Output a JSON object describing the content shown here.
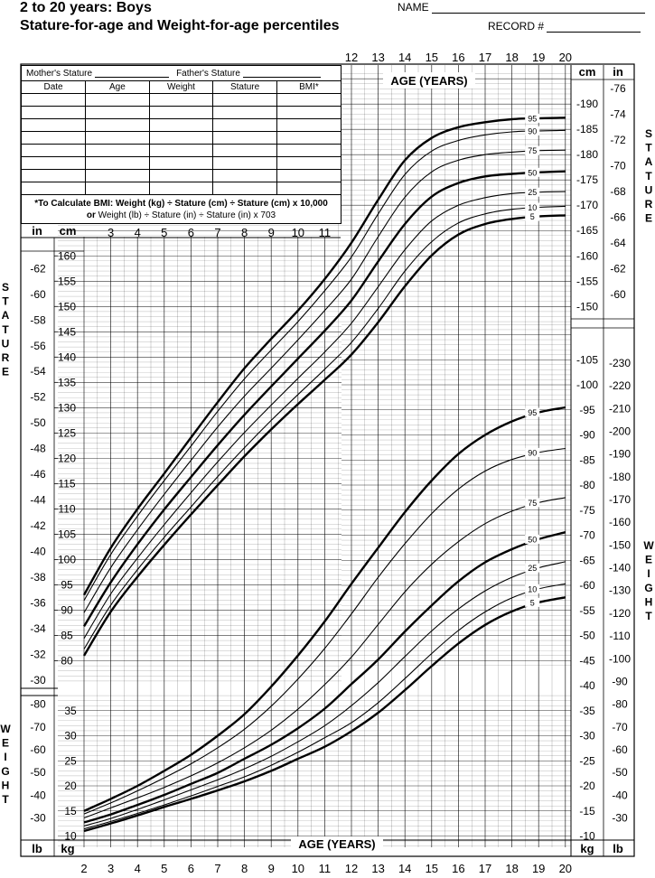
{
  "header": {
    "title": "2 to 20 years: Boys",
    "subtitle": "Stature-for-age and Weight-for-age percentiles",
    "name_label": "NAME",
    "record_label": "RECORD #"
  },
  "record_table": {
    "mothers_stature": "Mother's Stature",
    "fathers_stature": "Father's Stature",
    "columns": [
      "Date",
      "Age",
      "Weight",
      "Stature",
      "BMI*"
    ],
    "row_count": 8,
    "bmi_note_bold": "*To Calculate BMI: Weight (kg) ÷ Stature (cm) ÷ Stature (cm) x 10,000",
    "bmi_note_line2_bold": "or",
    "bmi_note_line2": "Weight (lb) ÷ Stature (in) ÷ Stature (in) x 703"
  },
  "chart_data": {
    "type": "line",
    "axis_title": "AGE (YEARS)",
    "x_ticks_top": [
      12,
      13,
      14,
      15,
      16,
      17,
      18,
      19,
      20
    ],
    "x_ticks_mid": [
      3,
      4,
      5,
      6,
      7,
      8,
      9,
      10,
      11
    ],
    "x_ticks_bottom": [
      2,
      3,
      4,
      5,
      6,
      7,
      8,
      9,
      10,
      11,
      12,
      13,
      14,
      15,
      16,
      17,
      18,
      19,
      20
    ],
    "xlim": [
      2,
      20
    ],
    "stature": {
      "label": "STATURE",
      "unit_cm": "cm",
      "unit_in": "in",
      "ylim_cm": [
        74,
        196
      ],
      "cm_ticks_left": [
        80,
        85,
        90,
        95,
        100,
        105,
        110,
        115,
        120,
        125,
        130,
        135,
        140,
        145,
        150,
        155,
        160
      ],
      "cm_ticks_right": [
        150,
        155,
        160,
        165,
        170,
        175,
        180,
        185,
        190
      ],
      "in_ticks_left": [
        30,
        32,
        34,
        36,
        38,
        40,
        42,
        44,
        46,
        48,
        50,
        52,
        54,
        56,
        58,
        60,
        62
      ],
      "in_ticks_right": [
        60,
        62,
        64,
        66,
        68,
        70,
        72,
        74,
        76
      ],
      "x": [
        2,
        3,
        4,
        5,
        6,
        7,
        8,
        9,
        10,
        11,
        12,
        13,
        14,
        15,
        16,
        17,
        18,
        19,
        20
      ],
      "series": [
        {
          "name": "95",
          "bold": true,
          "values": [
            93.0,
            102.3,
            110.0,
            117.0,
            124.1,
            131.1,
            137.8,
            143.6,
            149.2,
            155.4,
            162.6,
            171.1,
            178.9,
            183.3,
            185.4,
            186.4,
            187.0,
            187.2,
            187.3
          ]
        },
        {
          "name": "90",
          "bold": false,
          "values": [
            91.9,
            101.0,
            108.6,
            115.6,
            122.4,
            129.3,
            135.7,
            141.4,
            147.0,
            153.1,
            159.8,
            168.3,
            176.1,
            180.7,
            182.8,
            183.9,
            184.5,
            184.7,
            184.8
          ]
        },
        {
          "name": "75",
          "bold": false,
          "values": [
            89.5,
            98.4,
            105.9,
            112.9,
            119.6,
            126.2,
            132.3,
            137.8,
            143.4,
            149.2,
            155.4,
            163.8,
            171.6,
            176.6,
            178.9,
            180.0,
            180.5,
            180.8,
            180.9
          ]
        },
        {
          "name": "50",
          "bold": true,
          "values": [
            86.8,
            95.5,
            103.0,
            109.9,
            116.3,
            122.6,
            128.6,
            134.2,
            139.7,
            145.2,
            151.2,
            158.9,
            166.3,
            171.7,
            174.4,
            175.7,
            176.2,
            176.5,
            176.7
          ]
        },
        {
          "name": "25",
          "bold": false,
          "values": [
            84.4,
            93.2,
            100.3,
            106.9,
            113.2,
            119.3,
            125.1,
            130.5,
            135.8,
            141.0,
            146.7,
            153.9,
            161.2,
            166.9,
            170.0,
            171.5,
            172.3,
            172.6,
            172.7
          ]
        },
        {
          "name": "10",
          "bold": false,
          "values": [
            82.3,
            91.0,
            98.0,
            104.4,
            110.4,
            116.4,
            122.1,
            127.5,
            132.6,
            137.6,
            142.9,
            149.6,
            157.0,
            162.8,
            166.5,
            168.3,
            169.2,
            169.6,
            169.8
          ]
        },
        {
          "name": "5",
          "bold": true,
          "values": [
            81.0,
            89.7,
            96.6,
            102.9,
            108.9,
            114.7,
            120.4,
            125.7,
            130.7,
            135.5,
            140.5,
            146.9,
            154.0,
            160.1,
            164.2,
            166.3,
            167.3,
            167.8,
            168.0
          ]
        }
      ]
    },
    "weight": {
      "label": "WEIGHT",
      "unit_kg": "kg",
      "unit_lb": "lb",
      "ylim_kg": [
        8,
        112
      ],
      "kg_ticks_left": [
        10,
        15,
        20,
        25,
        30,
        35
      ],
      "kg_ticks_right": [
        10,
        15,
        20,
        25,
        30,
        35,
        40,
        45,
        50,
        55,
        60,
        65,
        70,
        75,
        80,
        85,
        90,
        95,
        100,
        105
      ],
      "lb_ticks_left": [
        30,
        40,
        50,
        60,
        70,
        80
      ],
      "lb_ticks_right": [
        30,
        40,
        50,
        60,
        70,
        80,
        90,
        100,
        110,
        120,
        130,
        140,
        150,
        160,
        170,
        180,
        190,
        200,
        210,
        220,
        230
      ],
      "x": [
        2,
        3,
        4,
        5,
        6,
        7,
        8,
        9,
        10,
        11,
        12,
        13,
        14,
        15,
        16,
        17,
        18,
        19,
        20
      ],
      "series": [
        {
          "name": "95",
          "bold": true,
          "values": [
            15.0,
            17.4,
            20.0,
            23.0,
            26.2,
            30.0,
            34.3,
            39.8,
            46.0,
            52.8,
            60.3,
            67.5,
            74.6,
            80.9,
            86.2,
            90.0,
            92.7,
            94.5,
            95.5
          ]
        },
        {
          "name": "90",
          "bold": false,
          "values": [
            14.4,
            16.6,
            19.0,
            21.6,
            24.4,
            27.6,
            31.3,
            35.9,
            41.3,
            47.4,
            54.3,
            61.6,
            68.3,
            74.3,
            79.2,
            82.8,
            85.1,
            86.5,
            87.3
          ]
        },
        {
          "name": "75",
          "bold": false,
          "values": [
            13.6,
            15.6,
            17.6,
            19.7,
            22.0,
            24.6,
            27.6,
            31.1,
            35.3,
            40.2,
            45.7,
            52.2,
            58.7,
            64.2,
            68.7,
            72.3,
            74.8,
            76.5,
            77.5
          ]
        },
        {
          "name": "50",
          "bold": true,
          "values": [
            12.7,
            14.3,
            16.2,
            18.2,
            20.4,
            22.6,
            25.4,
            28.2,
            31.5,
            35.4,
            40.3,
            45.2,
            50.8,
            56.0,
            60.8,
            64.6,
            67.2,
            69.2,
            70.6
          ]
        },
        {
          "name": "25",
          "bold": false,
          "values": [
            12.0,
            13.5,
            15.3,
            17.2,
            19.2,
            21.2,
            23.4,
            25.9,
            28.8,
            32.0,
            36.0,
            40.6,
            45.8,
            50.9,
            55.3,
            58.9,
            61.6,
            63.5,
            64.7
          ]
        },
        {
          "name": "10",
          "bold": false,
          "values": [
            11.4,
            12.9,
            14.5,
            16.2,
            18.0,
            19.9,
            21.8,
            24.1,
            26.7,
            29.6,
            32.6,
            36.6,
            41.4,
            46.4,
            51.0,
            54.7,
            57.5,
            59.3,
            60.3
          ]
        },
        {
          "name": "5",
          "bold": true,
          "values": [
            11.0,
            12.5,
            14.1,
            15.8,
            17.4,
            19.1,
            20.9,
            23.0,
            25.4,
            27.8,
            30.9,
            34.6,
            39.1,
            43.9,
            48.4,
            52.1,
            54.8,
            56.6,
            57.6
          ]
        }
      ]
    }
  }
}
